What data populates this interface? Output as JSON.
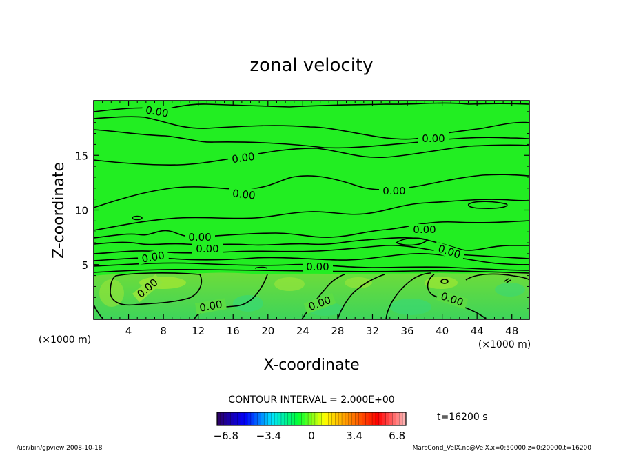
{
  "chart_data": {
    "type": "heatmap",
    "title": "zonal velocity",
    "xlabel": "X-coordinate",
    "ylabel": "Z-coordinate",
    "x_unit": "(×1000 m)",
    "y_unit": "(×1000 m)",
    "x_ticks": [
      "4",
      "8",
      "12",
      "16",
      "20",
      "24",
      "28",
      "32",
      "36",
      "40",
      "44",
      "48"
    ],
    "y_ticks": [
      "5",
      "10",
      "15"
    ],
    "xlim": [
      0,
      50
    ],
    "ylim": [
      0,
      20
    ],
    "contour_interval_label": "CONTOUR INTERVAL = 2.000E+00",
    "contour_label": "0.00",
    "time_label": "t=16200 s",
    "colorbar_ticks": [
      "-6.8",
      "-3.4",
      "0",
      "3.4",
      "6.8"
    ],
    "colorbar_range": [
      -7.5,
      7.5
    ],
    "colormap_colors": [
      "#2b006b",
      "#0000ff",
      "#00e5ff",
      "#00ff33",
      "#ffff00",
      "#ff8000",
      "#ff0000",
      "#ffb0b0"
    ],
    "field_color_upper": "#22ee22",
    "field_color_lower": "#44dd44"
  },
  "footer": {
    "left": "/usr/bin/gpview   2008-10-18",
    "right": "MarsCond_VelX.nc@VelX,x=0:50000,z=0:20000,t=16200"
  }
}
